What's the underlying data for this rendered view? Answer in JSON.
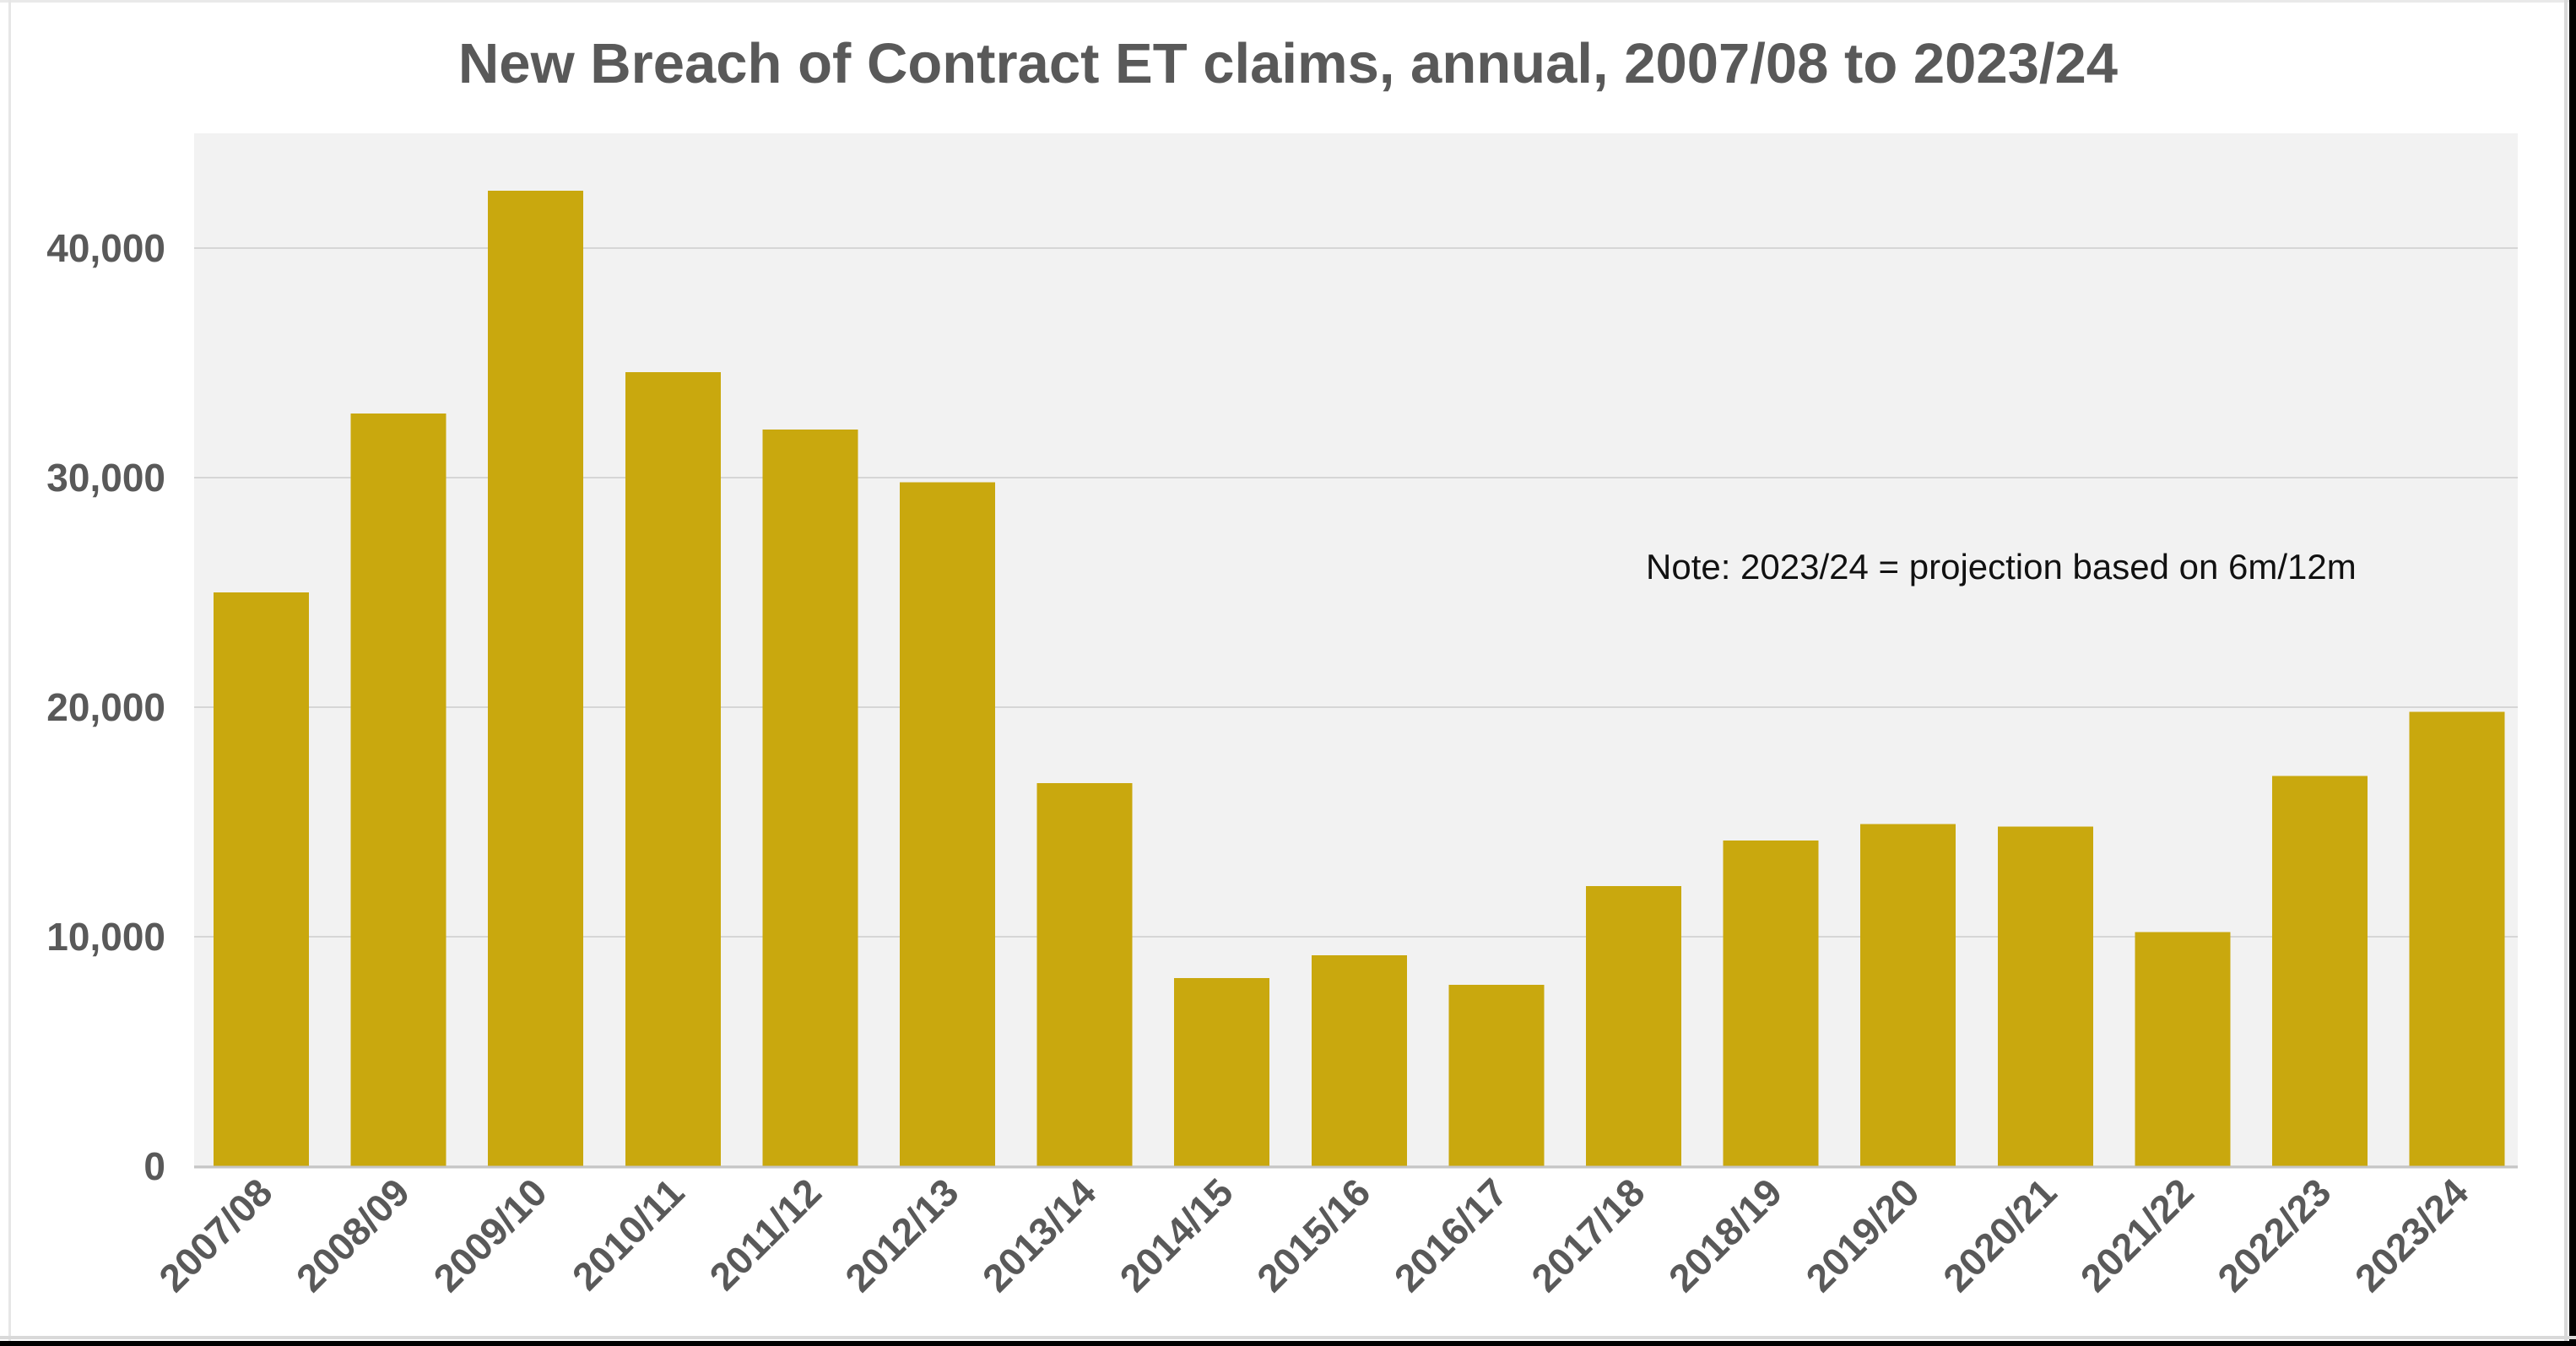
{
  "page": {
    "background": "#ffffff",
    "edge_black": "#000000",
    "edge_light_gray": "#d9d9d9"
  },
  "chart_data": {
    "type": "bar",
    "title": "New Breach of Contract ET claims, annual, 2007/08 to 2023/24",
    "annotation": "Note: 2023/24 = projection based on 6m/12m",
    "categories": [
      "2007/08",
      "2008/09",
      "2009/10",
      "2010/11",
      "2011/12",
      "2012/13",
      "2013/14",
      "2014/15",
      "2015/16",
      "2016/17",
      "2017/18",
      "2018/19",
      "2019/20",
      "2020/21",
      "2021/22",
      "2022/23",
      "2023/24"
    ],
    "values": [
      25000,
      32800,
      42500,
      34600,
      32100,
      29800,
      16700,
      8200,
      9200,
      7900,
      12200,
      14200,
      14900,
      14800,
      10200,
      17000,
      19800
    ],
    "xlabel": "",
    "ylabel": "",
    "ylim": [
      0,
      45000
    ],
    "yticks": [
      0,
      10000,
      20000,
      30000,
      40000
    ],
    "ytick_labels": [
      "0",
      "10,000",
      "20,000",
      "30,000",
      "40,000"
    ],
    "grid": true,
    "legend": false,
    "bar_color": "#C9A80E",
    "plot_background": "#F2F2F2",
    "grid_color": "#D6D6D6",
    "axis_line_color": "#C6C6C6",
    "tick_label_color": "#595959",
    "title_color": "#595959",
    "annotation_color": "#111111"
  }
}
